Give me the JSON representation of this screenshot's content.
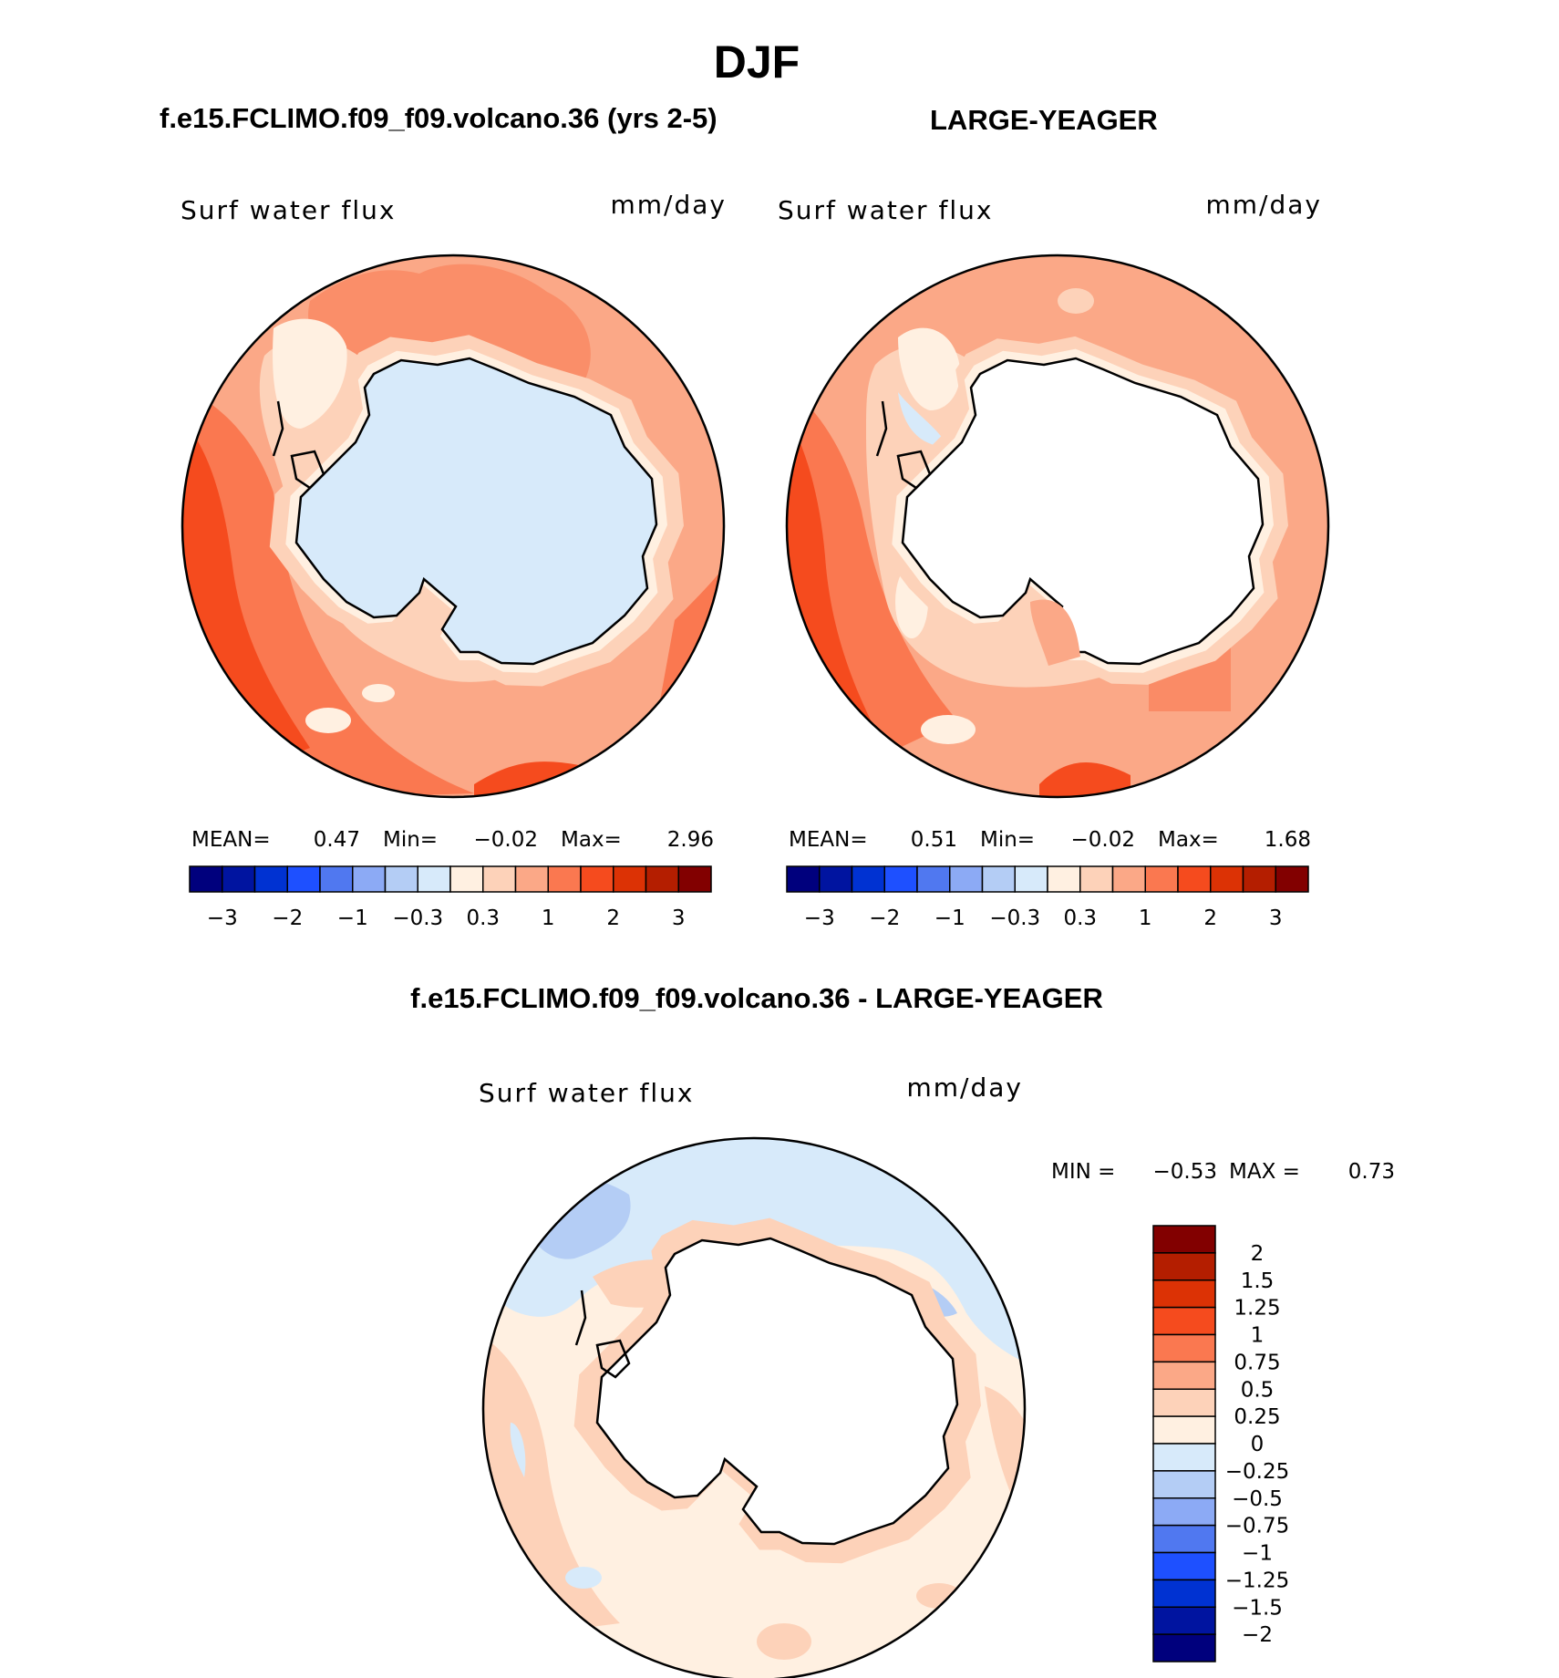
{
  "title": "DJF",
  "panels": [
    {
      "heading": "f.e15.FCLIMO.f09_f09.volcano.36 (yrs 2-5)",
      "variable": "Surf water flux",
      "units": "mm/day",
      "stats": {
        "mean_label": "MEAN=",
        "mean": "0.47",
        "min_label": "Min=",
        "min": "−0.02",
        "max_label": "Max=",
        "max": "2.96"
      },
      "land": "#d7eafa"
    },
    {
      "heading": "LARGE-YEAGER",
      "variable": "Surf water flux",
      "units": "mm/day",
      "stats": {
        "mean_label": "MEAN=",
        "mean": "0.51",
        "min_label": "Min=",
        "min": "−0.02",
        "max_label": "Max=",
        "max": "1.68"
      },
      "land": "#ffffff"
    }
  ],
  "diff": {
    "heading": "f.e15.FCLIMO.f09_f09.volcano.36 - LARGE-YEAGER",
    "variable": "Surf water flux",
    "units": "mm/day",
    "stats": {
      "min_label": "MIN =",
      "min": "−0.53",
      "max_label": "MAX =",
      "max": "0.73"
    }
  },
  "chart_data": [
    {
      "type": "heatmap",
      "projection": "south-polar-stereographic",
      "title": "f.e15.FCLIMO.f09_f09.volcano.36 (yrs 2-5)",
      "variable": "Surf water flux",
      "units": "mm/day",
      "mean": 0.47,
      "min": -0.02,
      "max": 2.96,
      "colorbar": {
        "colors": [
          "#00007d",
          "#0014a0",
          "#0032d2",
          "#1e50ff",
          "#5078f0",
          "#8caaf5",
          "#b4cdf5",
          "#d7eafa",
          "#fff0e1",
          "#fdd2b9",
          "#fba887",
          "#fa7850",
          "#f54b1e",
          "#dc3205",
          "#b41e00",
          "#820000"
        ],
        "tick_labels": [
          "−3",
          "−2",
          "−1",
          "−0.3",
          "0.3",
          "1",
          "2",
          "3"
        ]
      }
    },
    {
      "type": "heatmap",
      "projection": "south-polar-stereographic",
      "title": "LARGE-YEAGER",
      "variable": "Surf water flux",
      "units": "mm/day",
      "mean": 0.51,
      "min": -0.02,
      "max": 1.68,
      "colorbar": {
        "colors": [
          "#00007d",
          "#0014a0",
          "#0032d2",
          "#1e50ff",
          "#5078f0",
          "#8caaf5",
          "#b4cdf5",
          "#d7eafa",
          "#fff0e1",
          "#fdd2b9",
          "#fba887",
          "#fa7850",
          "#f54b1e",
          "#dc3205",
          "#b41e00",
          "#820000"
        ],
        "tick_labels": [
          "−3",
          "−2",
          "−1",
          "−0.3",
          "0.3",
          "1",
          "2",
          "3"
        ]
      }
    },
    {
      "type": "heatmap",
      "projection": "south-polar-stereographic",
      "title": "f.e15.FCLIMO.f09_f09.volcano.36 - LARGE-YEAGER",
      "variable": "Surf water flux",
      "units": "mm/day",
      "min": -0.53,
      "max": 0.73,
      "colorbar": {
        "orientation": "vertical",
        "colors_top_to_bottom": [
          "#820000",
          "#b41e00",
          "#dc3205",
          "#f54b1e",
          "#fa7850",
          "#fba887",
          "#fdd2b9",
          "#fff0e1",
          "#d7eafa",
          "#b4cdf5",
          "#8caaf5",
          "#5078f0",
          "#1e50ff",
          "#0032d2",
          "#0014a0",
          "#00007d"
        ],
        "tick_labels": [
          "2",
          "1.5",
          "1.25",
          "1",
          "0.75",
          "0.5",
          "0.25",
          "0",
          "−0.25",
          "−0.5",
          "−0.75",
          "−1",
          "−1.25",
          "−1.5",
          "−2"
        ]
      }
    }
  ]
}
